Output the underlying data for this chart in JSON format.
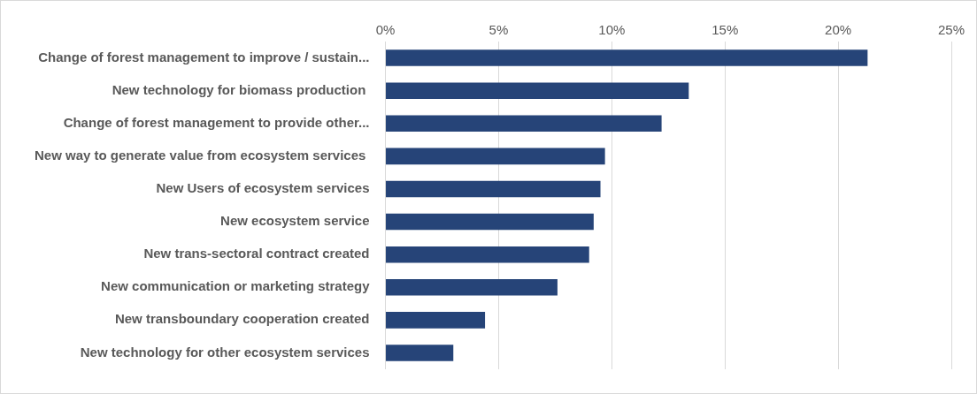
{
  "chart_data": {
    "type": "bar",
    "orientation": "horizontal",
    "categories": [
      "Change of forest management to improve / sustain...",
      "New technology for biomass production ",
      "Change of forest management to provide other...",
      "New way to generate value from ecosystem services ",
      "New Users of ecosystem services",
      "New ecosystem service",
      "New trans-sectoral contract created",
      "New communication or marketing strategy",
      "New transboundary cooperation created",
      "New technology for other ecosystem services"
    ],
    "values": [
      21.3,
      13.4,
      12.2,
      9.7,
      9.5,
      9.2,
      9.0,
      7.6,
      4.4,
      3.0
    ],
    "color": "#264478",
    "xlim": [
      0,
      25
    ],
    "xticks": [
      {
        "value": 0,
        "label": "0%"
      },
      {
        "value": 5,
        "label": "5%"
      },
      {
        "value": 10,
        "label": "10%"
      },
      {
        "value": 15,
        "label": "15%"
      },
      {
        "value": 20,
        "label": "20%"
      },
      {
        "value": 25,
        "label": "25%"
      }
    ],
    "grid": "x",
    "legend": false
  }
}
